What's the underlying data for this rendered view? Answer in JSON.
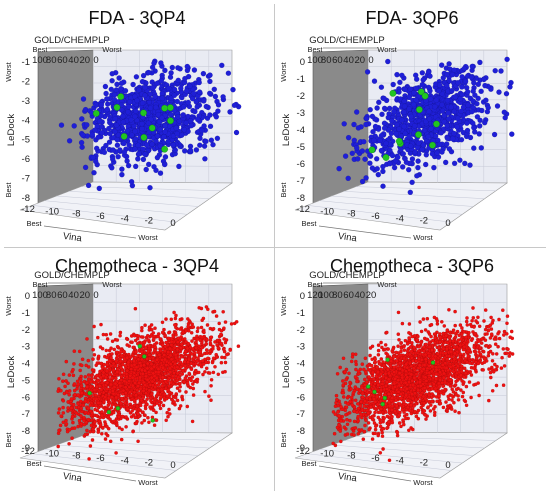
{
  "chart_data": [
    {
      "type": "scatter",
      "subtype": "3d-scatter",
      "title": "FDA - 3QP4",
      "x_axis": {
        "label": "Vina",
        "ticks": [
          "-12",
          "-10",
          "-8",
          "-6",
          "-4",
          "-2",
          "0"
        ],
        "range": [
          -12,
          0
        ],
        "best": "Best",
        "worst": "Worst"
      },
      "y_axis": {
        "label": "LeDock",
        "ticks": [
          "-1",
          "-2",
          "-3",
          "-4",
          "-5",
          "-6",
          "-7",
          "-8"
        ],
        "range": [
          -8,
          -1
        ],
        "best": "Best",
        "worst": "Worst"
      },
      "z_axis": {
        "label": "GOLD/CHEMPLP",
        "ticks": [
          "100",
          "80",
          "60",
          "40",
          "20",
          "0"
        ],
        "range": [
          0,
          100
        ],
        "best": "Best",
        "worst": "Worst"
      },
      "series": [
        {
          "color": "#1f1fd6",
          "approx_points": 1200,
          "center": {
            "vina": -6.5,
            "ledock": -4.5,
            "gold": 55
          }
        },
        {
          "color": "#22c522",
          "approx_points": 12,
          "center": {
            "vina": -8,
            "ledock": -5,
            "gold": 70
          }
        }
      ]
    },
    {
      "type": "scatter",
      "subtype": "3d-scatter",
      "title": "FDA- 3QP6",
      "x_axis": {
        "label": "Vina",
        "ticks": [
          "-12",
          "-10",
          "-8",
          "-6",
          "-4",
          "-2",
          "0"
        ],
        "range": [
          -12,
          0
        ],
        "best": "Best",
        "worst": "Worst"
      },
      "y_axis": {
        "label": "LeDock",
        "ticks": [
          "0",
          "-1",
          "-2",
          "-3",
          "-4",
          "-5",
          "-6",
          "-7",
          "-8"
        ],
        "range": [
          -8,
          0
        ],
        "best": "Best",
        "worst": "Worst"
      },
      "z_axis": {
        "label": "GOLD/CHEMPLP",
        "ticks": [
          "100",
          "80",
          "60",
          "40",
          "20",
          "0"
        ],
        "range": [
          0,
          100
        ],
        "best": "Best",
        "worst": "Worst"
      },
      "series": [
        {
          "color": "#1f1fd6",
          "approx_points": 1200,
          "center": {
            "vina": -6.5,
            "ledock": -4.5,
            "gold": 55
          }
        },
        {
          "color": "#22c522",
          "approx_points": 12,
          "center": {
            "vina": -8,
            "ledock": -5,
            "gold": 70
          }
        }
      ]
    },
    {
      "type": "scatter",
      "subtype": "3d-scatter",
      "title": "Chemotheca - 3QP4",
      "x_axis": {
        "label": "Vina",
        "ticks": [
          "-12",
          "-10",
          "-8",
          "-6",
          "-4",
          "-2",
          "0"
        ],
        "range": [
          -12,
          0
        ],
        "best": "Best",
        "worst": "Worst"
      },
      "y_axis": {
        "label": "LeDock",
        "ticks": [
          "0",
          "-1",
          "-2",
          "-3",
          "-4",
          "-5",
          "-6",
          "-7",
          "-8",
          "-9"
        ],
        "range": [
          -9,
          0
        ],
        "best": "Best",
        "worst": "Worst"
      },
      "z_axis": {
        "label": "GOLD/CHEMPLP",
        "ticks": [
          "100",
          "80",
          "60",
          "40",
          "20",
          "0"
        ],
        "range": [
          0,
          100
        ],
        "best": "Best",
        "worst": "Worst"
      },
      "series": [
        {
          "color": "#ee1111",
          "approx_points": 6000,
          "center": {
            "vina": -6.5,
            "ledock": -5.5,
            "gold": 55
          }
        },
        {
          "color": "#22c522",
          "approx_points": 8,
          "center": {
            "vina": -8,
            "ledock": -6,
            "gold": 70
          }
        }
      ]
    },
    {
      "type": "scatter",
      "subtype": "3d-scatter",
      "title": "Chemotheca - 3QP6",
      "x_axis": {
        "label": "Vina",
        "ticks": [
          "-12",
          "-10",
          "-8",
          "-6",
          "-4",
          "-2",
          "0"
        ],
        "range": [
          -12,
          0
        ],
        "best": "Best",
        "worst": "Worst"
      },
      "y_axis": {
        "label": "LeDock",
        "ticks": [
          "0",
          "-1",
          "-2",
          "-3",
          "-4",
          "-5",
          "-6",
          "-7",
          "-8",
          "-9"
        ],
        "range": [
          -9,
          0
        ],
        "best": "Best",
        "worst": "Worst"
      },
      "z_axis": {
        "label": "GOLD/CHEMPLP",
        "ticks": [
          "120",
          "100",
          "80",
          "60",
          "40",
          "20"
        ],
        "range": [
          20,
          120
        ],
        "best": "Best",
        "worst": "Worst"
      },
      "series": [
        {
          "color": "#ee1111",
          "approx_points": 6000,
          "center": {
            "vina": -6.5,
            "ledock": -5.5,
            "gold": 60
          }
        },
        {
          "color": "#22c522",
          "approx_points": 8,
          "center": {
            "vina": -8,
            "ledock": -6,
            "gold": 75
          }
        }
      ]
    }
  ]
}
